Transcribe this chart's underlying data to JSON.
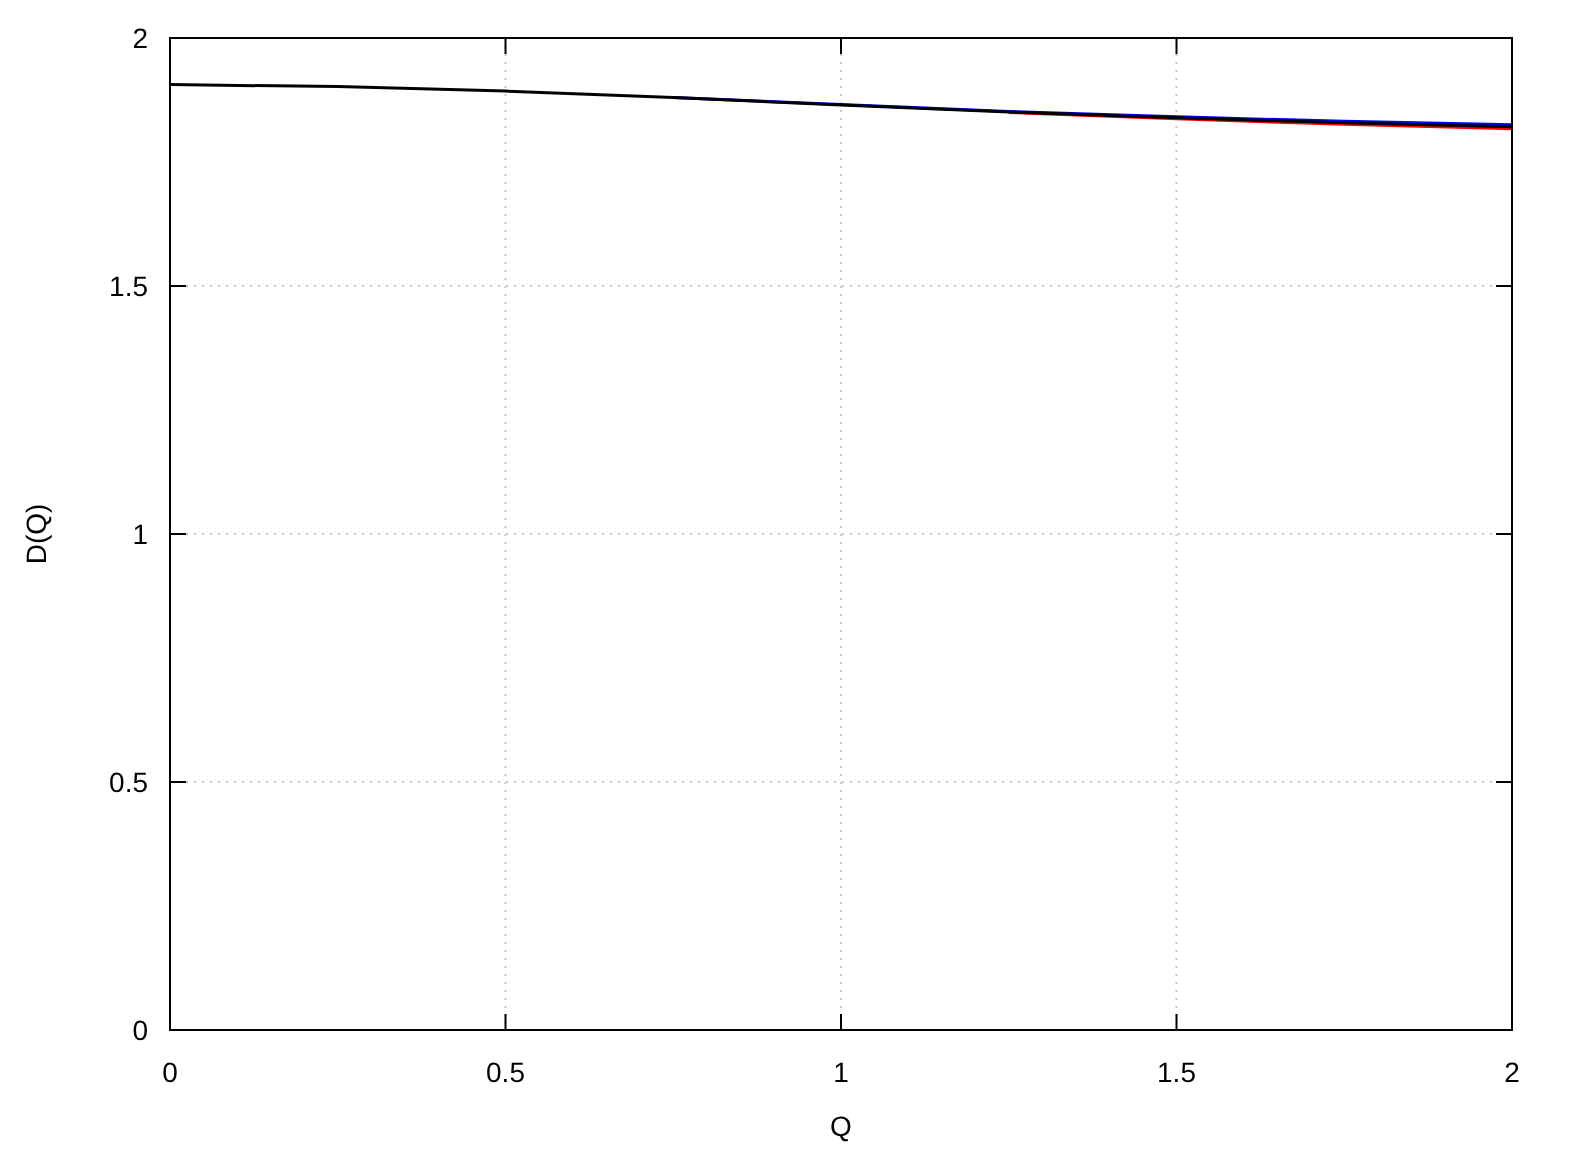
{
  "chart_data": {
    "type": "line",
    "xlabel": "Q",
    "ylabel": "D(Q)",
    "xlim": [
      0,
      2
    ],
    "ylim": [
      0,
      2
    ],
    "xticks": [
      0,
      0.5,
      1,
      1.5,
      2
    ],
    "yticks": [
      0,
      0.5,
      1,
      1.5,
      2
    ],
    "grid": true,
    "x": [
      0,
      0.25,
      0.5,
      0.75,
      1,
      1.25,
      1.5,
      1.75,
      2
    ],
    "series": [
      {
        "color": "#ff0000",
        "values": [
          null,
          null,
          null,
          null,
          null,
          1.85,
          1.837,
          1.826,
          1.817
        ]
      },
      {
        "color": "#0000ff",
        "values": [
          null,
          null,
          null,
          1.88,
          1.866,
          1.852,
          1.841,
          1.832,
          1.825
        ]
      },
      {
        "color": "#000000",
        "values": [
          1.906,
          1.902,
          1.893,
          1.88,
          1.865,
          1.851,
          1.839,
          1.829,
          1.821
        ]
      }
    ]
  }
}
